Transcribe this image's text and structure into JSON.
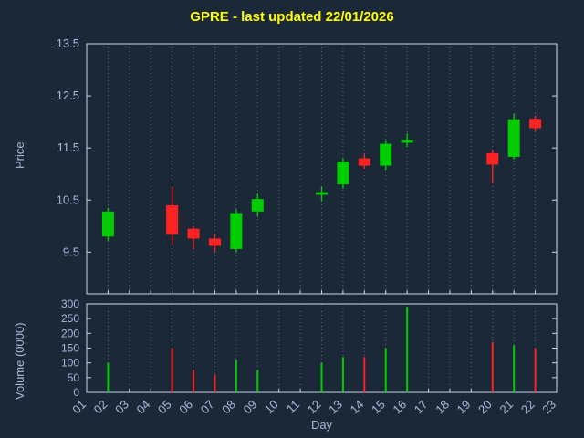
{
  "title": "GPRE - last updated 22/01/2026",
  "labels": {
    "price_axis": "Price",
    "volume_axis": "Volume (0000)",
    "day_axis": "Day"
  },
  "colors": {
    "background": "#1b2838",
    "up": "#00cc00",
    "down": "#ff2222",
    "title": "#ffff00",
    "axis": "#c9d7ec",
    "tick_label": "#a9badb",
    "grid": "#9aa5b5"
  },
  "chart_data": [
    {
      "type": "candlestick",
      "title": "GPRE - last updated 22/01/2026",
      "ylabel": "Price",
      "xlabel": "Day",
      "ylim": [
        8.7,
        13.5
      ],
      "yticks": [
        9.5,
        10.5,
        11.5,
        12.5,
        13.5
      ],
      "xticks": [
        "01",
        "02",
        "03",
        "04",
        "05",
        "06",
        "07",
        "08",
        "09",
        "10",
        "11",
        "12",
        "13",
        "14",
        "15",
        "16",
        "17",
        "18",
        "19",
        "20",
        "21",
        "22",
        "23"
      ],
      "grid": "vertical-dotted",
      "series": [
        {
          "day": 2,
          "open": 9.8,
          "high": 10.35,
          "low": 9.72,
          "close": 10.28
        },
        {
          "day": 5,
          "open": 10.4,
          "high": 10.75,
          "low": 9.65,
          "close": 9.85
        },
        {
          "day": 6,
          "open": 9.95,
          "high": 10.0,
          "low": 9.55,
          "close": 9.76
        },
        {
          "day": 7,
          "open": 9.76,
          "high": 9.85,
          "low": 9.5,
          "close": 9.62
        },
        {
          "day": 8,
          "open": 9.56,
          "high": 10.32,
          "low": 9.5,
          "close": 10.25
        },
        {
          "day": 9,
          "open": 10.28,
          "high": 10.62,
          "low": 10.18,
          "close": 10.52
        },
        {
          "day": 12,
          "open": 10.6,
          "high": 10.75,
          "low": 10.48,
          "close": 10.65
        },
        {
          "day": 13,
          "open": 10.8,
          "high": 11.3,
          "low": 10.72,
          "close": 11.24
        },
        {
          "day": 14,
          "open": 11.3,
          "high": 11.38,
          "low": 11.1,
          "close": 11.16
        },
        {
          "day": 15,
          "open": 11.16,
          "high": 11.65,
          "low": 11.08,
          "close": 11.58
        },
        {
          "day": 16,
          "open": 11.6,
          "high": 11.78,
          "low": 11.52,
          "close": 11.66
        },
        {
          "day": 20,
          "open": 11.4,
          "high": 11.47,
          "low": 10.82,
          "close": 11.18
        },
        {
          "day": 21,
          "open": 11.33,
          "high": 12.15,
          "low": 11.28,
          "close": 12.05
        },
        {
          "day": 22,
          "open": 12.06,
          "high": 12.12,
          "low": 11.82,
          "close": 11.88
        }
      ]
    },
    {
      "type": "bar",
      "ylabel": "Volume (0000)",
      "ylim": [
        0,
        300
      ],
      "yticks": [
        0,
        50,
        100,
        150,
        200,
        250,
        300
      ],
      "values": [
        {
          "day": 2,
          "volume": 100,
          "direction": "up"
        },
        {
          "day": 5,
          "volume": 150,
          "direction": "down"
        },
        {
          "day": 6,
          "volume": 75,
          "direction": "down"
        },
        {
          "day": 7,
          "volume": 60,
          "direction": "down"
        },
        {
          "day": 8,
          "volume": 110,
          "direction": "up"
        },
        {
          "day": 9,
          "volume": 75,
          "direction": "up"
        },
        {
          "day": 12,
          "volume": 100,
          "direction": "up"
        },
        {
          "day": 13,
          "volume": 120,
          "direction": "up"
        },
        {
          "day": 14,
          "volume": 120,
          "direction": "down"
        },
        {
          "day": 15,
          "volume": 150,
          "direction": "up"
        },
        {
          "day": 16,
          "volume": 290,
          "direction": "up"
        },
        {
          "day": 20,
          "volume": 170,
          "direction": "down"
        },
        {
          "day": 21,
          "volume": 160,
          "direction": "up"
        },
        {
          "day": 22,
          "volume": 150,
          "direction": "down"
        }
      ]
    }
  ]
}
